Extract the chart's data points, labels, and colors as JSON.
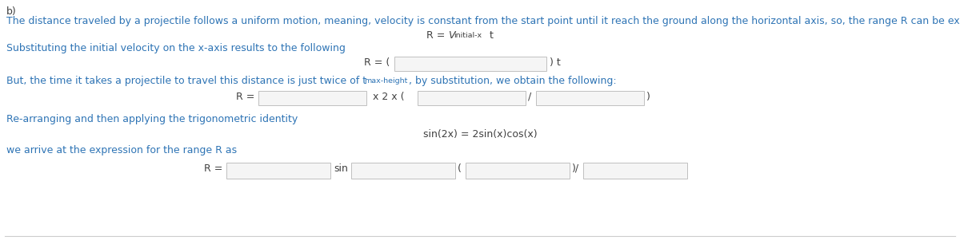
{
  "bg_color": "#ffffff",
  "text_color": "#2e74b5",
  "normal_text_color": "#404040",
  "label_b": "b)",
  "line1": "The distance traveled by a projectile follows a uniform motion, meaning, velocity is constant from the start point until it reach the ground along the horizontal axis, so, the range R can be expressed as",
  "line2": "Substituting the initial velocity on the x-axis results to the following",
  "line3_prefix": "But, the time it takes a projectile to travel this distance is just twice of t",
  "line3_sub": "max-height",
  "line3_suffix": ", by substitution, we obtain the following:",
  "line4": "Re-arranging and then applying the trigonometric identity",
  "eq4": "sin(2x) = 2sin(x)cos(x)",
  "line5": "we arrive at the expression for the range R as",
  "box_facecolor": "#f5f5f5",
  "box_edgecolor": "#c0c0c0",
  "line_color": "#cccccc",
  "font_size": 9.0,
  "small_font_size": 6.8
}
